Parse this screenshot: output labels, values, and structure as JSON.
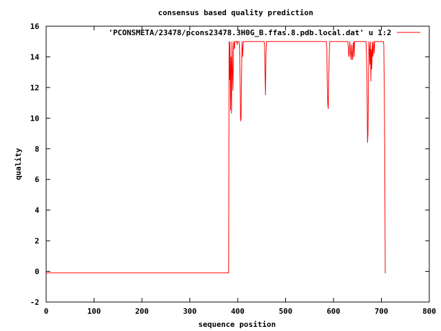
{
  "chart_data": {
    "type": "line",
    "title": "consensus based quality prediction",
    "xlabel": "sequence position",
    "ylabel": "quality",
    "xlim": [
      0,
      800
    ],
    "ylim": [
      -2,
      16
    ],
    "xticks": [
      0,
      100,
      200,
      300,
      400,
      500,
      600,
      700,
      800
    ],
    "yticks": [
      -2,
      0,
      2,
      4,
      6,
      8,
      10,
      12,
      14,
      16
    ],
    "grid": false,
    "legend_position": "top-right",
    "series": [
      {
        "name": "'PCONSMETA/23478/pcons23478.3H0G_B.ffas.8.pdb.local.dat' u 1:2",
        "color": "#ff0000",
        "x": [
          0,
          381,
          382,
          383,
          384,
          385,
          386,
          387,
          388,
          389,
          390,
          391,
          392,
          393,
          394,
          398,
          399,
          400,
          401,
          402,
          403,
          404,
          405,
          406,
          407,
          408,
          409,
          410,
          411,
          412,
          413,
          414,
          415,
          420,
          455,
          456,
          457,
          458,
          459,
          460,
          461,
          462,
          470,
          585,
          586,
          587,
          588,
          589,
          590,
          591,
          592,
          593,
          594,
          600,
          630,
          631,
          632,
          633,
          634,
          635,
          636,
          637,
          638,
          639,
          640,
          641,
          642,
          643,
          644,
          645,
          650,
          668,
          669,
          670,
          671,
          672,
          673,
          674,
          675,
          676,
          677,
          678,
          679,
          680,
          681,
          682,
          683,
          684,
          685,
          686,
          687,
          688,
          689,
          700,
          704,
          705,
          706,
          707,
          708,
          709
        ],
        "y": [
          -0.1,
          -0.1,
          15,
          12.5,
          15,
          10.5,
          14,
          10.3,
          15,
          13,
          11.8,
          14.5,
          15,
          14.5,
          15,
          15,
          14.8,
          15,
          15,
          15,
          15,
          14.5,
          12,
          9.8,
          10,
          12.6,
          15,
          14,
          14.5,
          15,
          15,
          15,
          15,
          15,
          15,
          14.7,
          13,
          11.5,
          14.3,
          15,
          15,
          15,
          15,
          15,
          14.6,
          12.5,
          11,
          10.6,
          12.8,
          14,
          15,
          15,
          15,
          15,
          15,
          14.5,
          14,
          14.2,
          15,
          14.6,
          14,
          13.8,
          14.8,
          14.2,
          13.8,
          14.8,
          15,
          14,
          15,
          15,
          15,
          15,
          14,
          12,
          8.4,
          9,
          12.5,
          15,
          14.5,
          13.5,
          15,
          12.4,
          14.5,
          13.2,
          15,
          14,
          14.6,
          15,
          14.2,
          15,
          15,
          15,
          15,
          15,
          15,
          14.8,
          12,
          7.5,
          -0.1,
          -0.1
        ]
      }
    ]
  }
}
